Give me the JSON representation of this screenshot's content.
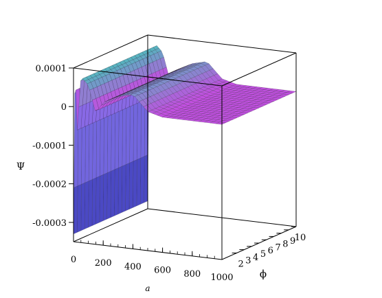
{
  "chart_data": {
    "type": "surface3d",
    "title": "",
    "xlabel": "a",
    "ylabel": "ϕ",
    "zlabel": "Ψ",
    "x_range": [
      0,
      1000
    ],
    "y_range": [
      0,
      10
    ],
    "z_range": [
      -0.00035,
      0.0001
    ],
    "x_ticks": [
      "0",
      "200",
      "400",
      "600",
      "800",
      "1000"
    ],
    "y_ticks": [
      "2",
      "3",
      "4",
      "5",
      "6",
      "7",
      "8",
      "9",
      "10"
    ],
    "z_ticks": [
      "0.0001",
      "0",
      "-0.0001",
      "-0.0002",
      "-0.0003"
    ],
    "grid": false,
    "legend": "none",
    "colors": {
      "low": "#c24fe0",
      "mid": "#7d6ee6",
      "high": "#30d8b4",
      "deep": "#3a3cb8",
      "mesh": "#1a1a1a",
      "box": "#000000"
    },
    "profile": [
      {
        "a": 0,
        "psi": -0.00033
      },
      {
        "a": 10,
        "psi": 0.00011
      },
      {
        "a": 25,
        "psi": -6e-05
      },
      {
        "a": 50,
        "psi": 8e-05
      },
      {
        "a": 100,
        "psi": 6e-05
      },
      {
        "a": 150,
        "psi": -1e-05
      },
      {
        "a": 200,
        "psi": 2e-05
      },
      {
        "a": 300,
        "psi": 4e-05
      },
      {
        "a": 400,
        "psi": 5e-05
      },
      {
        "a": 500,
        "psi": 1e-05
      },
      {
        "a": 600,
        "psi": 0.0
      },
      {
        "a": 800,
        "psi": 0.0
      },
      {
        "a": 1000,
        "psi": 0.0
      }
    ]
  }
}
